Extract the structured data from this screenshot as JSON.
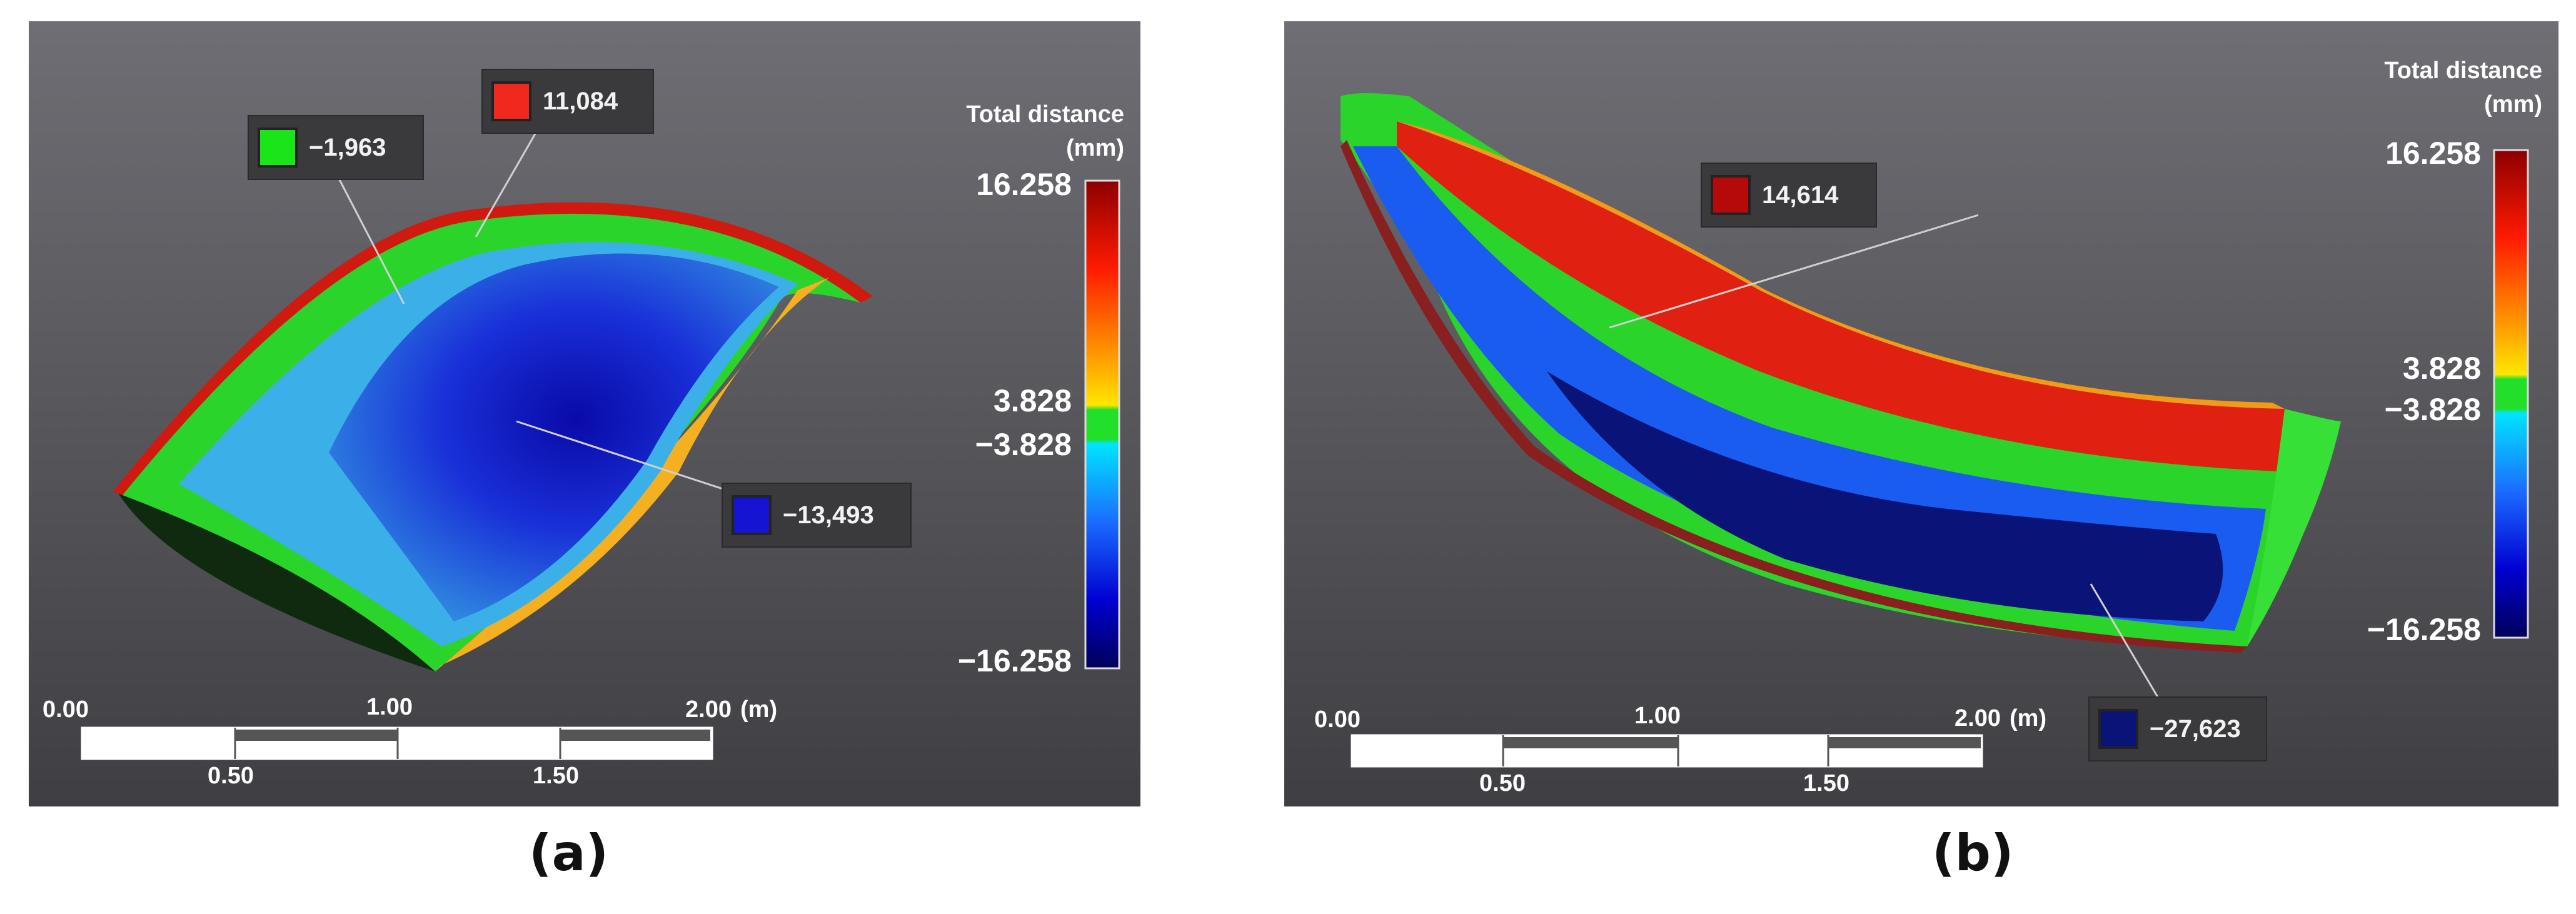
{
  "panel_a": {
    "caption": "(a)",
    "legend": {
      "title_line1": "Total distance",
      "title_line2": "(mm)",
      "max": "16.258",
      "upper_tol": "3.828",
      "lower_tol": "−3.828",
      "min": "−16.258"
    },
    "callouts": [
      {
        "value": "−1,963",
        "color": "#19e619"
      },
      {
        "value": "11,084",
        "color": "#f0281e"
      },
      {
        "value": "−13,493",
        "color": "#1414d2"
      }
    ],
    "scale": {
      "tick_0": "0.00",
      "tick_1": "1.00",
      "tick_2": "2.00",
      "unit": "(m)",
      "tick_050": "0.50",
      "tick_150": "1.50"
    }
  },
  "panel_b": {
    "caption": "(b)",
    "legend": {
      "title_line1": "Total distance",
      "title_line2": "(mm)",
      "max": "16.258",
      "upper_tol": "3.828",
      "lower_tol": "−3.828",
      "min": "−16.258"
    },
    "callouts": [
      {
        "value": "14,614",
        "color": "#b40a0a"
      },
      {
        "value": "−27,623",
        "color": "#0a1478"
      }
    ],
    "scale": {
      "tick_0": "0.00",
      "tick_1": "1.00",
      "tick_2": "2.00",
      "unit": "(m)",
      "tick_050": "0.50",
      "tick_150": "1.50"
    }
  }
}
